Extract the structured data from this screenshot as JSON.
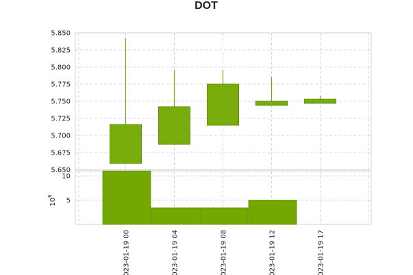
{
  "chart_data": {
    "type": "candlestick",
    "title": "DOT",
    "color": "#72a800",
    "candles": [
      {
        "x": "023-01-19 00",
        "open": 5.659,
        "high": 5.842,
        "low": 5.659,
        "close": 5.716,
        "volume": 11.0
      },
      {
        "x": "023-01-19 04",
        "open": 5.687,
        "high": 5.796,
        "low": 5.687,
        "close": 5.742,
        "volume": 3.4
      },
      {
        "x": "023-01-19 08",
        "open": 5.715,
        "high": 5.796,
        "low": 5.715,
        "close": 5.775,
        "volume": 3.4
      },
      {
        "x": "023-01-19 12",
        "open": 5.744,
        "high": 5.786,
        "low": 5.744,
        "close": 5.75,
        "volume": 5.0
      },
      {
        "x": "023-01-19 17",
        "open": 5.747,
        "high": 5.758,
        "low": 5.747,
        "close": 5.753,
        "volume": 0
      }
    ],
    "price_axis": {
      "ylim": [
        5.65,
        5.85
      ],
      "ticks": [
        "5.650",
        "5.675",
        "5.700",
        "5.725",
        "5.750",
        "5.775",
        "5.800",
        "5.825",
        "5.850"
      ]
    },
    "volume_axis": {
      "ylim": [
        0,
        11
      ],
      "ticks": [
        "5",
        "10"
      ],
      "multiplier_base": "10",
      "multiplier_exp": "6"
    },
    "grid": true
  }
}
